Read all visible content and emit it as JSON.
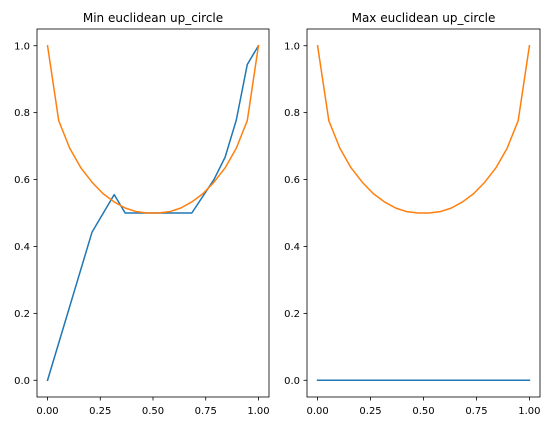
{
  "chart_data": [
    {
      "type": "line",
      "title": "Min euclidean up_circle",
      "xlabel": "",
      "ylabel": "",
      "xlim": [
        -0.05,
        1.05
      ],
      "ylim": [
        -0.05,
        1.05
      ],
      "xticks": [
        0.0,
        0.25,
        0.5,
        0.75,
        1.0
      ],
      "xtick_labels": [
        "0.00",
        "0.25",
        "0.50",
        "0.75",
        "1.00"
      ],
      "yticks": [
        0.0,
        0.2,
        0.4,
        0.6,
        0.8,
        1.0
      ],
      "ytick_labels": [
        "0.0",
        "0.2",
        "0.4",
        "0.6",
        "0.8",
        "1.0"
      ],
      "grid": false,
      "series": [
        {
          "color": "#1f77b4",
          "x": [
            0.0,
            0.211,
            0.316,
            0.368,
            0.5,
            0.684,
            0.789,
            0.842,
            0.895,
            0.947,
            1.0
          ],
          "y": [
            0.0,
            0.443,
            0.555,
            0.5,
            0.5,
            0.5,
            0.6,
            0.667,
            0.778,
            0.944,
            1.0
          ]
        },
        {
          "color": "#ff7f0e",
          "x": [
            0.0,
            0.053,
            0.105,
            0.158,
            0.211,
            0.263,
            0.316,
            0.368,
            0.421,
            0.474,
            0.526,
            0.579,
            0.632,
            0.684,
            0.737,
            0.789,
            0.842,
            0.895,
            0.947,
            1.0
          ],
          "y": [
            1.0,
            0.776,
            0.694,
            0.635,
            0.592,
            0.558,
            0.533,
            0.515,
            0.504,
            0.5,
            0.5,
            0.504,
            0.515,
            0.533,
            0.558,
            0.592,
            0.635,
            0.694,
            0.776,
            1.0
          ]
        }
      ]
    },
    {
      "type": "line",
      "title": "Max euclidean up_circle",
      "xlabel": "",
      "ylabel": "",
      "xlim": [
        -0.05,
        1.05
      ],
      "ylim": [
        -0.05,
        1.05
      ],
      "xticks": [
        0.0,
        0.25,
        0.5,
        0.75,
        1.0
      ],
      "xtick_labels": [
        "0.00",
        "0.25",
        "0.50",
        "0.75",
        "1.00"
      ],
      "yticks": [
        0.0,
        0.2,
        0.4,
        0.6,
        0.8,
        1.0
      ],
      "ytick_labels": [
        "0.0",
        "0.2",
        "0.4",
        "0.6",
        "0.8",
        "1.0"
      ],
      "grid": false,
      "series": [
        {
          "color": "#1f77b4",
          "x": [
            0.0,
            1.0
          ],
          "y": [
            0.0,
            0.0
          ]
        },
        {
          "color": "#ff7f0e",
          "x": [
            0.0,
            0.053,
            0.105,
            0.158,
            0.211,
            0.263,
            0.316,
            0.368,
            0.421,
            0.474,
            0.526,
            0.579,
            0.632,
            0.684,
            0.737,
            0.789,
            0.842,
            0.895,
            0.947,
            1.0
          ],
          "y": [
            1.0,
            0.776,
            0.694,
            0.635,
            0.592,
            0.558,
            0.533,
            0.515,
            0.504,
            0.5,
            0.5,
            0.504,
            0.515,
            0.533,
            0.558,
            0.592,
            0.635,
            0.694,
            0.776,
            1.0
          ]
        }
      ]
    }
  ]
}
